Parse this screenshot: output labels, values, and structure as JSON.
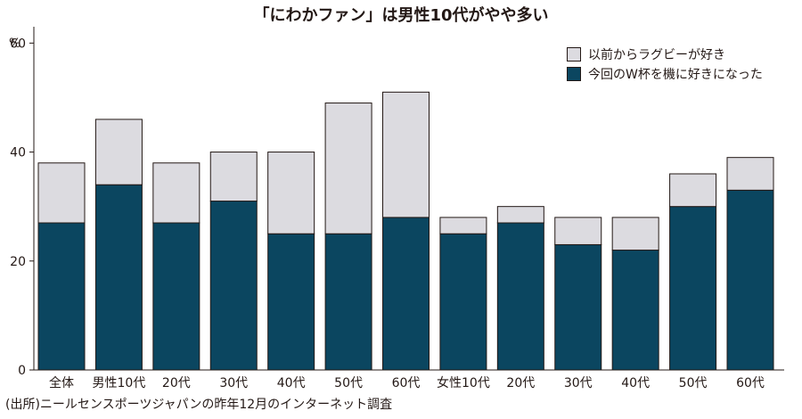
{
  "title": "「にわかファン」は男性10代がやや多い",
  "source": "(出所)ニールセンスポーツジャパンの昨年12月のインターネット調査",
  "colors": {
    "like_before": "#dcdbe0",
    "became_fan": "#0b4660",
    "axis": "#231815"
  },
  "chart_data": {
    "type": "bar",
    "stacked": true,
    "ylabel": "%",
    "ylim": [
      0,
      63
    ],
    "yticks": [
      0,
      20,
      40,
      60
    ],
    "grid": false,
    "legend_position": "top-right",
    "categories": [
      "全体",
      "男性10代",
      "20代",
      "30代",
      "40代",
      "50代",
      "60代",
      "女性10代",
      "20代",
      "30代",
      "40代",
      "50代",
      "60代"
    ],
    "series": [
      {
        "name": "今回のW杯を機に好きになった",
        "color": "#0b4660",
        "values": [
          27,
          34,
          27,
          31,
          25,
          25,
          28,
          25,
          27,
          23,
          22,
          30,
          33
        ]
      },
      {
        "name": "以前からラグビーが好き",
        "color": "#dcdbe0",
        "values": [
          11,
          12,
          11,
          9,
          15,
          24,
          23,
          3,
          3,
          5,
          6,
          6,
          6
        ]
      }
    ]
  }
}
